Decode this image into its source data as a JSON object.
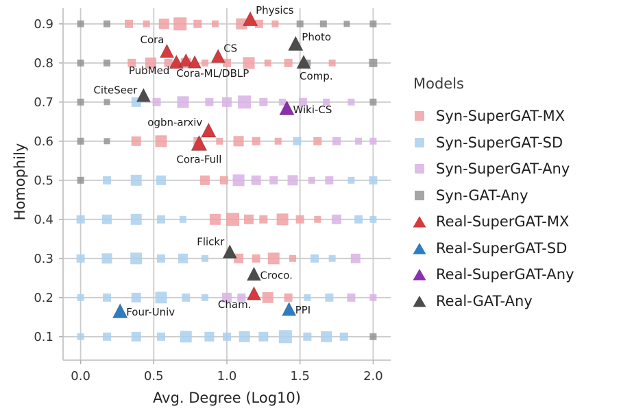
{
  "chart_data": {
    "type": "scatter",
    "title": "",
    "xlabel": "Avg. Degree (Log10)",
    "ylabel": "Homophily",
    "xlim": [
      -0.12,
      2.12
    ],
    "ylim": [
      0.04,
      0.94
    ],
    "xticks": [
      0.0,
      0.5,
      1.0,
      1.5,
      2.0
    ],
    "yticks": [
      0.1,
      0.2,
      0.3,
      0.4,
      0.5,
      0.6,
      0.7,
      0.8,
      0.9
    ],
    "grid": true,
    "legend_title": "Models",
    "legend_position": "right",
    "style": {
      "grid_color": "#cccccc",
      "spine_color": "#c4c4c4",
      "tick_color": "#b0b0b0",
      "text_color": "#262626"
    },
    "series": [
      {
        "name": "Syn-SuperGAT-MX",
        "marker": "square",
        "color": "#f0a0a2",
        "opacity": 0.85,
        "points": [
          [
            0.33,
            0.9,
            12
          ],
          [
            0.45,
            0.9,
            10
          ],
          [
            0.57,
            0.9,
            15
          ],
          [
            0.68,
            0.9,
            19
          ],
          [
            0.8,
            0.9,
            12
          ],
          [
            0.92,
            0.9,
            10
          ],
          [
            1.1,
            0.9,
            16
          ],
          [
            1.22,
            0.9,
            12
          ],
          [
            1.33,
            0.9,
            10
          ],
          [
            0.35,
            0.8,
            12
          ],
          [
            0.48,
            0.8,
            16
          ],
          [
            0.6,
            0.8,
            12
          ],
          [
            0.72,
            0.8,
            15
          ],
          [
            0.85,
            0.8,
            10
          ],
          [
            1.0,
            0.8,
            12
          ],
          [
            1.15,
            0.8,
            17
          ],
          [
            1.28,
            0.8,
            10
          ],
          [
            1.42,
            0.8,
            12
          ],
          [
            1.72,
            0.8,
            10
          ],
          [
            0.38,
            0.6,
            14
          ],
          [
            0.55,
            0.6,
            17
          ],
          [
            0.8,
            0.6,
            12
          ],
          [
            0.95,
            0.6,
            10
          ],
          [
            1.08,
            0.6,
            15
          ],
          [
            1.2,
            0.6,
            12
          ],
          [
            1.35,
            0.6,
            10
          ],
          [
            1.62,
            0.6,
            12
          ],
          [
            0.85,
            0.5,
            14
          ],
          [
            0.98,
            0.5,
            12
          ],
          [
            0.92,
            0.4,
            16
          ],
          [
            1.04,
            0.4,
            19
          ],
          [
            1.15,
            0.4,
            14
          ],
          [
            1.25,
            0.4,
            12
          ],
          [
            1.38,
            0.4,
            17
          ],
          [
            1.5,
            0.4,
            12
          ],
          [
            1.62,
            0.4,
            10
          ],
          [
            1.08,
            0.3,
            14
          ],
          [
            1.2,
            0.3,
            12
          ],
          [
            1.32,
            0.3,
            17
          ],
          [
            1.45,
            0.3,
            10
          ],
          [
            1.28,
            0.2,
            16
          ],
          [
            1.42,
            0.2,
            12
          ]
        ]
      },
      {
        "name": "Syn-SuperGAT-SD",
        "marker": "square",
        "color": "#aad0ef",
        "opacity": 0.85,
        "points": [
          [
            0.38,
            0.7,
            14
          ],
          [
            1.48,
            0.6,
            12
          ],
          [
            0.18,
            0.5,
            12
          ],
          [
            0.38,
            0.5,
            16
          ],
          [
            0.55,
            0.5,
            14
          ],
          [
            1.85,
            0.5,
            10
          ],
          [
            2.0,
            0.5,
            12
          ],
          [
            0.0,
            0.4,
            12
          ],
          [
            0.18,
            0.4,
            14
          ],
          [
            0.38,
            0.4,
            16
          ],
          [
            0.55,
            0.4,
            12
          ],
          [
            0.7,
            0.4,
            10
          ],
          [
            1.9,
            0.4,
            12
          ],
          [
            2.0,
            0.4,
            10
          ],
          [
            0.0,
            0.3,
            12
          ],
          [
            0.18,
            0.3,
            15
          ],
          [
            0.38,
            0.3,
            17
          ],
          [
            0.55,
            0.3,
            12
          ],
          [
            0.7,
            0.3,
            14
          ],
          [
            0.85,
            0.3,
            10
          ],
          [
            1.6,
            0.3,
            12
          ],
          [
            1.72,
            0.3,
            10
          ],
          [
            0.0,
            0.2,
            10
          ],
          [
            0.18,
            0.2,
            12
          ],
          [
            0.38,
            0.2,
            14
          ],
          [
            0.55,
            0.2,
            17
          ],
          [
            0.72,
            0.2,
            12
          ],
          [
            0.85,
            0.2,
            10
          ],
          [
            1.55,
            0.2,
            10
          ],
          [
            1.7,
            0.2,
            12
          ],
          [
            0.0,
            0.1,
            10
          ],
          [
            0.18,
            0.1,
            12
          ],
          [
            0.38,
            0.1,
            14
          ],
          [
            0.55,
            0.1,
            12
          ],
          [
            0.72,
            0.1,
            17
          ],
          [
            0.88,
            0.1,
            14
          ],
          [
            1.0,
            0.1,
            12
          ],
          [
            1.12,
            0.1,
            16
          ],
          [
            1.25,
            0.1,
            14
          ],
          [
            1.4,
            0.1,
            19
          ],
          [
            1.55,
            0.1,
            12
          ],
          [
            1.68,
            0.1,
            16
          ],
          [
            1.8,
            0.1,
            12
          ]
        ]
      },
      {
        "name": "Syn-SuperGAT-Any",
        "marker": "square",
        "color": "#d8b3e4",
        "opacity": 0.85,
        "points": [
          [
            0.52,
            0.7,
            12
          ],
          [
            0.7,
            0.7,
            17
          ],
          [
            0.88,
            0.7,
            12
          ],
          [
            1.0,
            0.7,
            14
          ],
          [
            1.12,
            0.7,
            19
          ],
          [
            1.25,
            0.7,
            12
          ],
          [
            1.38,
            0.7,
            10
          ],
          [
            1.52,
            0.7,
            12
          ],
          [
            1.68,
            0.7,
            10
          ],
          [
            1.85,
            0.7,
            10
          ],
          [
            1.75,
            0.6,
            12
          ],
          [
            1.9,
            0.6,
            10
          ],
          [
            2.0,
            0.6,
            10
          ],
          [
            1.08,
            0.5,
            17
          ],
          [
            1.2,
            0.5,
            14
          ],
          [
            1.32,
            0.5,
            12
          ],
          [
            1.45,
            0.5,
            15
          ],
          [
            1.58,
            0.5,
            10
          ],
          [
            1.7,
            0.5,
            12
          ],
          [
            1.75,
            0.4,
            14
          ],
          [
            1.88,
            0.3,
            14
          ],
          [
            1.0,
            0.2,
            14
          ],
          [
            1.1,
            0.2,
            12
          ],
          [
            1.85,
            0.2,
            12
          ],
          [
            2.0,
            0.2,
            10
          ]
        ]
      },
      {
        "name": "Syn-GAT-Any",
        "marker": "square",
        "color": "#8f8f8f",
        "opacity": 0.8,
        "points": [
          [
            0.0,
            0.9,
            10
          ],
          [
            0.18,
            0.9,
            10
          ],
          [
            1.5,
            0.9,
            10
          ],
          [
            1.66,
            0.9,
            10
          ],
          [
            1.82,
            0.9,
            9
          ],
          [
            2.0,
            0.9,
            10
          ],
          [
            0.0,
            0.8,
            10
          ],
          [
            0.18,
            0.8,
            10
          ],
          [
            1.55,
            0.8,
            10
          ],
          [
            2.0,
            0.8,
            12
          ],
          [
            0.0,
            0.7,
            10
          ],
          [
            0.18,
            0.7,
            9
          ],
          [
            2.0,
            0.7,
            10
          ],
          [
            0.0,
            0.6,
            10
          ],
          [
            0.18,
            0.6,
            9
          ],
          [
            0.0,
            0.5,
            10
          ],
          [
            2.0,
            0.1,
            10
          ]
        ]
      },
      {
        "name": "Real-SuperGAT-MX",
        "marker": "triangle",
        "color": "#d63a3e",
        "points": [
          {
            "x": 1.16,
            "y": 0.91,
            "s": 17,
            "label": "Physics",
            "lanchor": "start",
            "ldx": 8,
            "ldy": -9
          },
          {
            "x": 0.59,
            "y": 0.828,
            "s": 16,
            "label": "Cora",
            "lanchor": "end",
            "ldx": -4,
            "ldy": -13
          },
          {
            "x": 0.94,
            "y": 0.815,
            "s": 16,
            "label": "CS",
            "lanchor": "start",
            "ldx": 8,
            "ldy": -8
          },
          {
            "x": 0.655,
            "y": 0.8,
            "s": 16,
            "label": "PubMed",
            "lanchor": "end",
            "ldx": -10,
            "ldy": 16
          },
          {
            "x": 0.72,
            "y": 0.805,
            "s": 15,
            "label": "Cora-ML/DBLP",
            "lanchor": "start",
            "ldx": -14,
            "ldy": 23
          },
          {
            "x": 0.78,
            "y": 0.8,
            "s": 15
          },
          {
            "x": 0.875,
            "y": 0.625,
            "s": 17,
            "label": "ogbn-arxiv",
            "lanchor": "end",
            "ldx": -9,
            "ldy": -8
          },
          {
            "x": 0.81,
            "y": 0.592,
            "s": 18,
            "label": "Cora-Full",
            "lanchor": "middle",
            "ldx": 0,
            "ldy": 27
          },
          {
            "x": 1.185,
            "y": 0.208,
            "s": 16,
            "label": "Cham.",
            "lanchor": "end",
            "ldx": -4,
            "ldy": 20
          }
        ]
      },
      {
        "name": "Real-SuperGAT-SD",
        "marker": "triangle",
        "color": "#2e7dc3",
        "points": [
          {
            "x": 0.27,
            "y": 0.163,
            "s": 17,
            "label": "Four-Univ",
            "lanchor": "start",
            "ldx": 9,
            "ldy": 5
          },
          {
            "x": 1.425,
            "y": 0.168,
            "s": 16,
            "label": "PPI",
            "lanchor": "start",
            "ldx": 9,
            "ldy": 5
          }
        ]
      },
      {
        "name": "Real-SuperGAT-Any",
        "marker": "triangle",
        "color": "#8a2fae",
        "points": [
          {
            "x": 1.41,
            "y": 0.682,
            "s": 17,
            "label": "Wiki-CS",
            "lanchor": "start",
            "ldx": 9,
            "ldy": 6
          }
        ]
      },
      {
        "name": "Real-GAT-Any",
        "marker": "triangle",
        "color": "#4c4c4c",
        "points": [
          {
            "x": 1.47,
            "y": 0.847,
            "s": 17,
            "label": "Photo",
            "lanchor": "start",
            "ldx": 9,
            "ldy": -6
          },
          {
            "x": 1.525,
            "y": 0.8,
            "s": 16,
            "label": "Comp.",
            "lanchor": "start",
            "ldx": -6,
            "ldy": 24
          },
          {
            "x": 0.43,
            "y": 0.715,
            "s": 16,
            "label": "CiteSeer",
            "lanchor": "end",
            "ldx": -9,
            "ldy": -4
          },
          {
            "x": 1.02,
            "y": 0.315,
            "s": 16,
            "label": "Flickr",
            "lanchor": "end",
            "ldx": -8,
            "ldy": -11
          },
          {
            "x": 1.185,
            "y": 0.258,
            "s": 16,
            "label": "Croco.",
            "lanchor": "start",
            "ldx": 9,
            "ldy": 6
          }
        ]
      }
    ]
  }
}
